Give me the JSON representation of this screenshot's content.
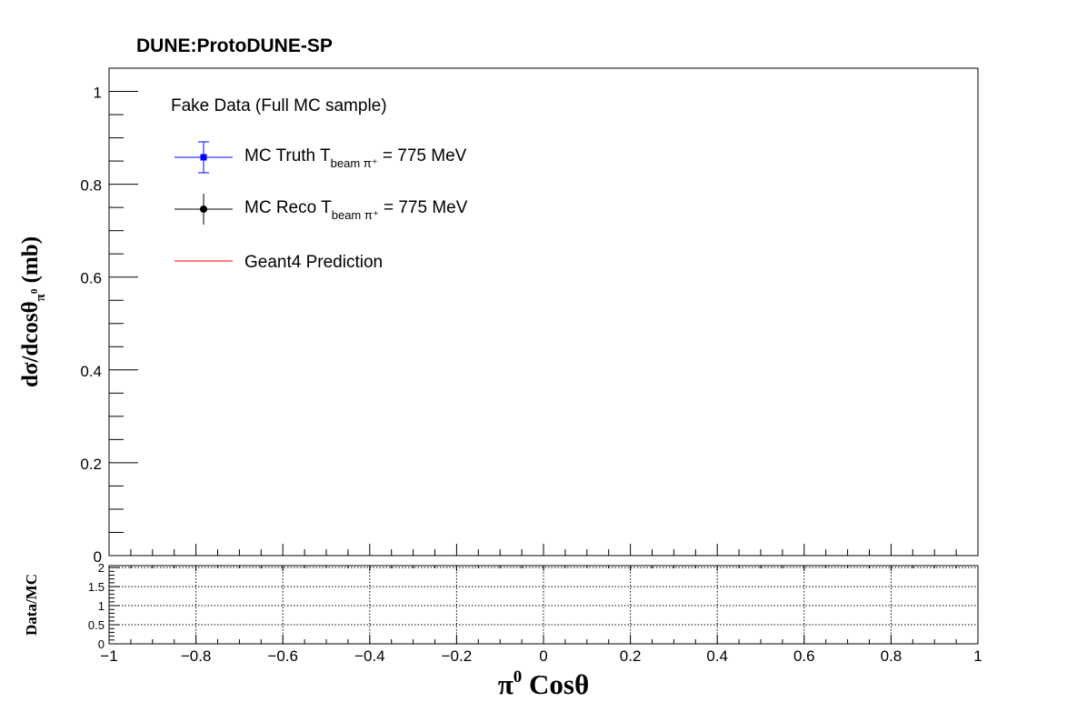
{
  "title": "DUNE:ProtoDUNE-SP",
  "legend": {
    "header": "Fake Data (Full MC sample)",
    "entries": [
      {
        "label": "MC Truth T",
        "sub": "beam π⁺",
        "suffix": " = 775 MeV",
        "color": "#0000ff",
        "marker": "square"
      },
      {
        "label": "MC Reco T",
        "sub": "beam π⁺",
        "suffix": " = 775 MeV",
        "color": "#000000",
        "marker": "circle"
      },
      {
        "label": "Geant4 Prediction",
        "sub": "",
        "suffix": "",
        "color": "#ff0000",
        "marker": "line"
      }
    ]
  },
  "chart_data": [
    {
      "type": "scatter",
      "title": "DUNE:ProtoDUNE-SP",
      "ylabel": "dσ/dcosθ",
      "ylabel_sub": "π",
      "ylabel_subsup": "0",
      "ylabel_unit": " (mb)",
      "xlim": [
        -1,
        1
      ],
      "ylim": [
        0,
        1.05
      ],
      "y_ticks": [
        "0",
        "0.2",
        "0.4",
        "0.6",
        "0.8",
        "1"
      ],
      "y_tick_values": [
        0,
        0.2,
        0.4,
        0.6,
        0.8,
        1
      ],
      "grid": false,
      "legend_position": "top-left",
      "series": [
        {
          "name": "MC Truth T beam π⁺ = 775 MeV",
          "color": "#0000ff",
          "points": []
        },
        {
          "name": "MC Reco T beam π⁺ = 775 MeV",
          "color": "#000000",
          "points": []
        },
        {
          "name": "Geant4 Prediction",
          "color": "#ff0000",
          "points": []
        }
      ]
    },
    {
      "type": "scatter",
      "ylabel": "Data/MC",
      "xlabel_base": "π",
      "xlabel_sup": "0",
      "xlabel_text": " Cosθ",
      "xlim": [
        -1,
        1
      ],
      "ylim": [
        0,
        2.05
      ],
      "x_ticks": [
        "−1",
        "−0.8",
        "−0.6",
        "−0.4",
        "−0.2",
        "0",
        "0.2",
        "0.4",
        "0.6",
        "0.8",
        "1"
      ],
      "x_tick_values": [
        -1,
        -0.8,
        -0.6,
        -0.4,
        -0.2,
        0,
        0.2,
        0.4,
        0.6,
        0.8,
        1
      ],
      "y_ticks": [
        "0",
        "0.5",
        "1",
        "1.5",
        "2"
      ],
      "y_tick_values": [
        0,
        0.5,
        1,
        1.5,
        2
      ],
      "grid": true,
      "series": []
    }
  ]
}
